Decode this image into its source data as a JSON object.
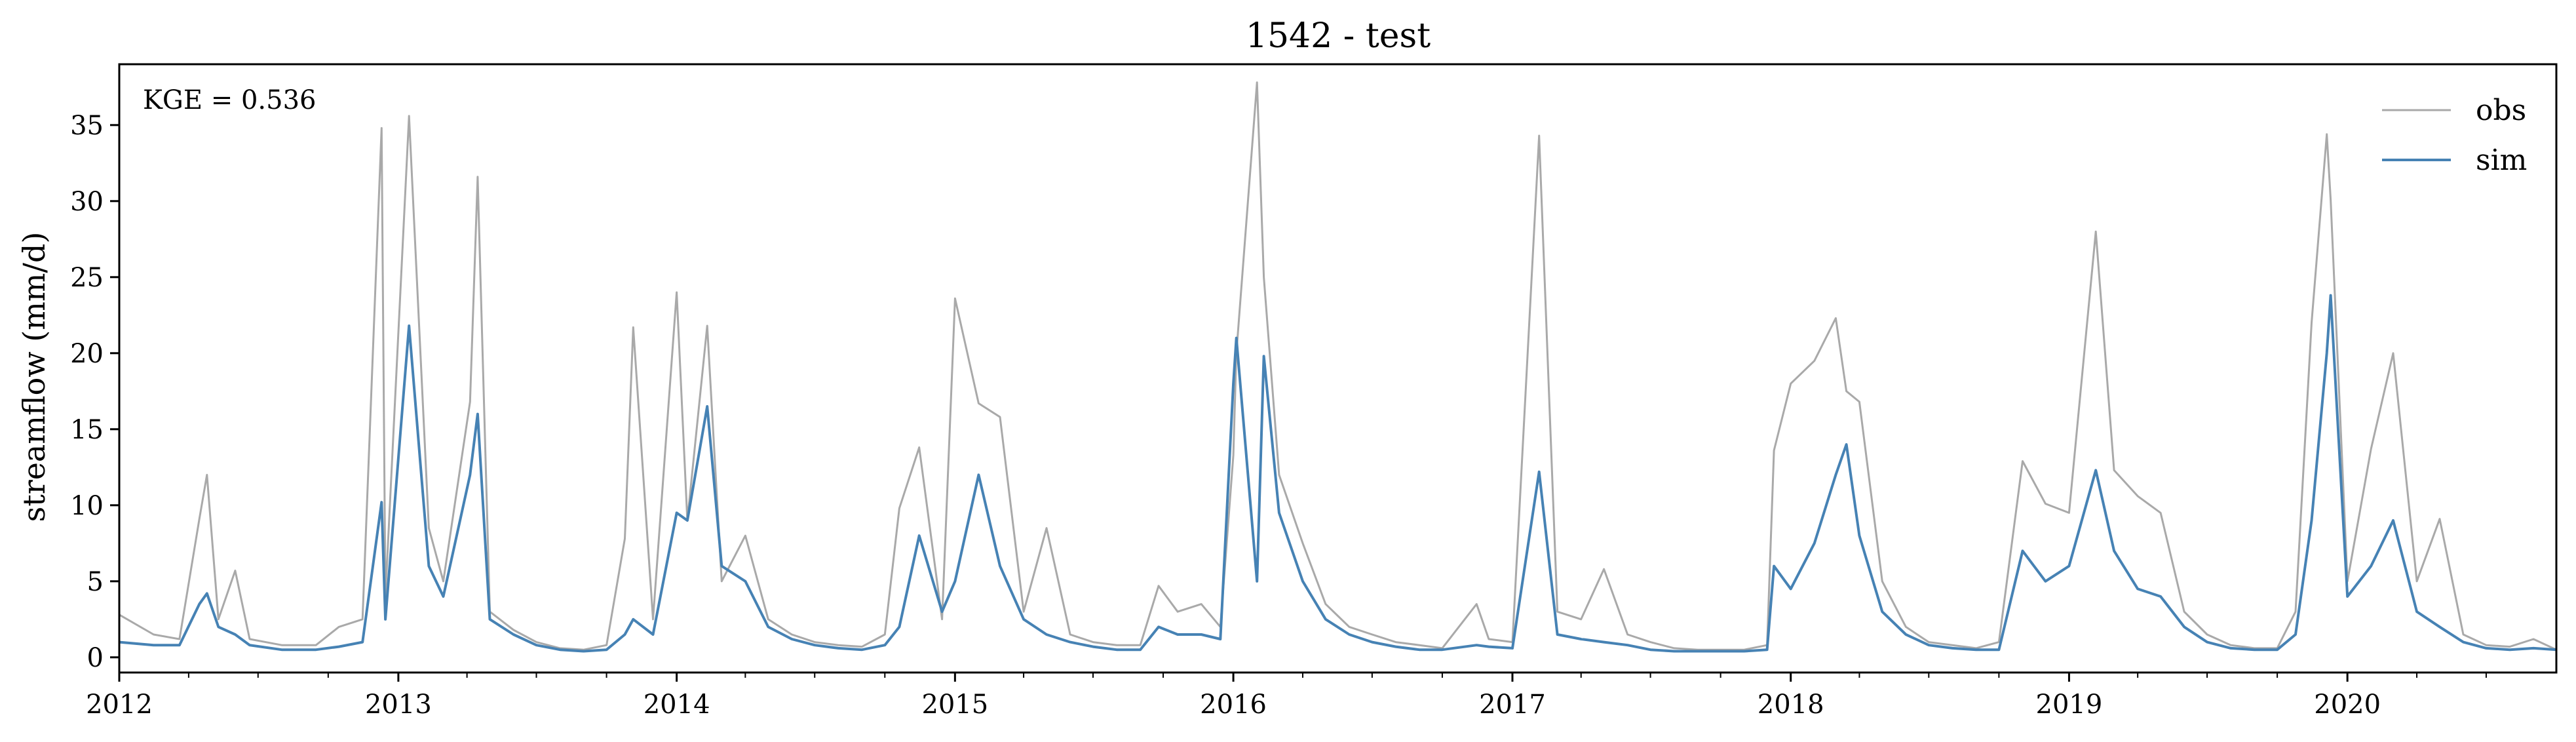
{
  "chart_data": {
    "type": "line",
    "title": "1542 - test",
    "xlabel": "",
    "ylabel": "streamflow (mm/d)",
    "annotation": "KGE = 0.536",
    "xlim": [
      "2012-01-01",
      "2020-10-01"
    ],
    "ylim": [
      -1,
      39
    ],
    "yticks": [
      0,
      5,
      10,
      15,
      20,
      25,
      30,
      35
    ],
    "xtick_labels": [
      "2012",
      "2013",
      "2014",
      "2015",
      "2016",
      "2017",
      "2018",
      "2019",
      "2020"
    ],
    "grid": false,
    "legend": {
      "position": "top-right",
      "entries": [
        "obs",
        "sim"
      ]
    },
    "colors": {
      "obs": "#a9a9a9",
      "sim": "#4682b4"
    },
    "x": [
      "2012-01-01",
      "2012-02-15",
      "2012-03-20",
      "2012-04-15",
      "2012-04-25",
      "2012-05-10",
      "2012-06-01",
      "2012-06-20",
      "2012-08-01",
      "2012-09-15",
      "2012-10-15",
      "2012-11-15",
      "2012-12-10",
      "2012-12-15",
      "2013-01-15",
      "2013-02-10",
      "2013-03-01",
      "2013-04-05",
      "2013-04-15",
      "2013-05-01",
      "2013-06-01",
      "2013-07-01",
      "2013-08-01",
      "2013-09-01",
      "2013-10-01",
      "2013-10-25",
      "2013-11-05",
      "2013-12-01",
      "2014-01-01",
      "2014-01-15",
      "2014-02-10",
      "2014-03-01",
      "2014-04-01",
      "2014-05-01",
      "2014-06-01",
      "2014-07-01",
      "2014-08-01",
      "2014-09-01",
      "2014-10-01",
      "2014-10-20",
      "2014-11-15",
      "2014-12-15",
      "2015-01-01",
      "2015-02-01",
      "2015-03-01",
      "2015-04-01",
      "2015-05-01",
      "2015-06-01",
      "2015-07-01",
      "2015-08-01",
      "2015-09-01",
      "2015-09-25",
      "2015-10-20",
      "2015-11-20",
      "2015-12-15",
      "2016-01-01",
      "2016-01-05",
      "2016-02-01",
      "2016-02-10",
      "2016-03-01",
      "2016-04-01",
      "2016-05-01",
      "2016-06-01",
      "2016-07-01",
      "2016-08-01",
      "2016-09-01",
      "2016-10-01",
      "2016-11-15",
      "2016-12-01",
      "2017-01-01",
      "2017-02-05",
      "2017-03-01",
      "2017-04-01",
      "2017-05-01",
      "2017-06-01",
      "2017-07-01",
      "2017-08-01",
      "2017-09-01",
      "2017-10-01",
      "2017-11-01",
      "2017-12-01",
      "2017-12-10",
      "2018-01-01",
      "2018-02-01",
      "2018-03-01",
      "2018-03-15",
      "2018-04-01",
      "2018-05-01",
      "2018-06-01",
      "2018-07-01",
      "2018-08-01",
      "2018-09-01",
      "2018-10-01",
      "2018-11-01",
      "2018-12-01",
      "2019-01-01",
      "2019-02-05",
      "2019-03-01",
      "2019-04-01",
      "2019-05-01",
      "2019-06-01",
      "2019-07-01",
      "2019-08-01",
      "2019-09-01",
      "2019-10-01",
      "2019-10-25",
      "2019-11-15",
      "2019-12-05",
      "2019-12-10",
      "2020-01-01",
      "2020-02-01",
      "2020-03-01",
      "2020-04-01",
      "2020-05-01",
      "2020-06-01",
      "2020-07-01",
      "2020-08-01",
      "2020-09-01",
      "2020-10-01"
    ],
    "series": [
      {
        "name": "obs",
        "values": [
          2.8,
          1.5,
          1.2,
          9.1,
          12.0,
          2.5,
          5.7,
          1.2,
          0.8,
          0.8,
          2.0,
          2.5,
          34.8,
          4.0,
          35.6,
          8.5,
          5.0,
          16.8,
          31.6,
          3.0,
          1.8,
          1.0,
          0.6,
          0.5,
          0.8,
          7.8,
          21.7,
          2.5,
          24.0,
          9.0,
          21.8,
          5.0,
          8.0,
          2.5,
          1.5,
          1.0,
          0.8,
          0.7,
          1.5,
          9.8,
          13.8,
          2.5,
          23.6,
          16.7,
          15.8,
          3.0,
          8.5,
          1.5,
          1.0,
          0.8,
          0.8,
          4.7,
          3.0,
          3.5,
          2.0,
          13.3,
          20.0,
          37.8,
          25.0,
          12.0,
          7.5,
          3.5,
          2.0,
          1.5,
          1.0,
          0.8,
          0.6,
          3.5,
          1.2,
          1.0,
          34.3,
          3.0,
          2.5,
          5.8,
          1.5,
          1.0,
          0.6,
          0.5,
          0.5,
          0.5,
          0.8,
          13.6,
          18.0,
          19.5,
          22.3,
          17.5,
          16.8,
          5.0,
          2.0,
          1.0,
          0.8,
          0.6,
          1.0,
          12.9,
          10.1,
          9.5,
          28.0,
          12.3,
          10.6,
          9.5,
          3.0,
          1.5,
          0.8,
          0.6,
          0.6,
          3.0,
          22.0,
          34.4,
          30.1,
          5.0,
          13.7,
          20.0,
          5.0,
          9.1,
          1.5,
          0.8,
          0.7,
          1.2,
          0.5
        ]
      },
      {
        "name": "sim",
        "values": [
          1.0,
          0.8,
          0.8,
          3.5,
          4.2,
          2.0,
          1.5,
          0.8,
          0.5,
          0.5,
          0.7,
          1.0,
          10.2,
          2.5,
          21.8,
          6.0,
          4.0,
          12.0,
          16.0,
          2.5,
          1.5,
          0.8,
          0.5,
          0.4,
          0.5,
          1.5,
          2.5,
          1.5,
          9.5,
          9.0,
          16.5,
          6.0,
          5.0,
          2.0,
          1.2,
          0.8,
          0.6,
          0.5,
          0.8,
          2.0,
          8.0,
          3.0,
          5.0,
          12.0,
          6.0,
          2.5,
          1.5,
          1.0,
          0.7,
          0.5,
          0.5,
          2.0,
          1.5,
          1.5,
          1.2,
          18.0,
          21.0,
          5.0,
          19.8,
          9.5,
          5.0,
          2.5,
          1.5,
          1.0,
          0.7,
          0.5,
          0.5,
          0.8,
          0.7,
          0.6,
          12.2,
          1.5,
          1.2,
          1.0,
          0.8,
          0.5,
          0.4,
          0.4,
          0.4,
          0.4,
          0.5,
          6.0,
          4.5,
          7.5,
          12.0,
          14.0,
          8.0,
          3.0,
          1.5,
          0.8,
          0.6,
          0.5,
          0.5,
          7.0,
          5.0,
          6.0,
          12.3,
          7.0,
          4.5,
          4.0,
          2.0,
          1.0,
          0.6,
          0.5,
          0.5,
          1.5,
          9.0,
          20.0,
          23.8,
          4.0,
          6.0,
          9.0,
          3.0,
          2.0,
          1.0,
          0.6,
          0.5,
          0.6,
          0.5
        ]
      }
    ]
  }
}
